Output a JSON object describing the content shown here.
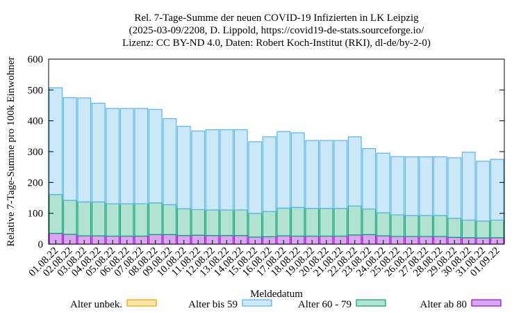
{
  "chart_data": {
    "type": "bar",
    "stacked": true,
    "title_lines": [
      "Rel. 7-Tage-Summe der neuen COVID-19 Infizierten in LK Leipzig",
      "(2025-03-09/2208, D. Lippold, https://covid19-de-stats.sourceforge.io/",
      "Lizenz: CC BY-ND 4.0, Daten: Robert Koch-Institut (RKI), dl-de/by-2-0)"
    ],
    "xlabel": "Meldedatum",
    "ylabel": "Relative 7-Tage-Summe pro 100k Einwohner",
    "ylim": [
      0,
      600
    ],
    "yticks": [
      0,
      100,
      200,
      300,
      400,
      500,
      600
    ],
    "grid": false,
    "legend_position": "bottom",
    "categories": [
      "01.08.22",
      "02.08.22",
      "03.08.22",
      "04.08.22",
      "05.08.22",
      "06.08.22",
      "07.08.22",
      "08.08.22",
      "09.08.22",
      "10.08.22",
      "11.08.22",
      "12.08.22",
      "13.08.22",
      "14.08.22",
      "15.08.22",
      "16.08.22",
      "17.08.22",
      "18.08.22",
      "19.08.22",
      "20.08.22",
      "21.08.22",
      "22.08.22",
      "23.08.22",
      "24.08.22",
      "25.08.22",
      "26.08.22",
      "27.08.22",
      "28.08.22",
      "29.08.22",
      "30.08.22",
      "31.08.22",
      "01.09.22"
    ],
    "series": [
      {
        "name": "Alter ab 80",
        "fill": "#d9a6f0",
        "stroke": "#9400d3",
        "values": [
          35,
          32,
          27,
          27,
          26,
          26,
          26,
          31,
          31,
          28,
          29,
          28,
          28,
          28,
          23,
          24,
          27,
          26,
          26,
          26,
          26,
          30,
          31,
          27,
          25,
          25,
          25,
          25,
          22,
          21,
          20,
          21
        ]
      },
      {
        "name": "Alter 60 - 79",
        "fill": "#b2e2d2",
        "stroke": "#009e73",
        "values": [
          126,
          110,
          110,
          110,
          105,
          105,
          105,
          103,
          97,
          87,
          83,
          83,
          83,
          83,
          77,
          82,
          90,
          93,
          90,
          90,
          90,
          94,
          83,
          75,
          70,
          68,
          68,
          68,
          62,
          57,
          55,
          57
        ]
      },
      {
        "name": "Alter bis 59",
        "fill": "#cce8f8",
        "stroke": "#56b4e9",
        "values": [
          346,
          333,
          337,
          320,
          309,
          309,
          309,
          303,
          279,
          267,
          255,
          260,
          260,
          260,
          232,
          242,
          248,
          242,
          220,
          220,
          220,
          224,
          196,
          193,
          189,
          190,
          190,
          190,
          196,
          220,
          194,
          197
        ]
      },
      {
        "name": "Alter unbek.",
        "fill": "#fde5a8",
        "stroke": "#e69f00",
        "values": [
          0,
          0,
          0,
          0,
          0,
          0,
          0,
          0,
          0,
          0,
          0,
          0,
          0,
          0,
          0,
          0,
          0,
          0,
          0,
          0,
          0,
          0,
          0,
          0,
          0,
          0,
          0,
          0,
          0,
          0,
          0,
          0
        ]
      }
    ],
    "legend_order": [
      "Alter unbek.",
      "Alter bis 59",
      "Alter 60 - 79",
      "Alter ab 80"
    ]
  }
}
